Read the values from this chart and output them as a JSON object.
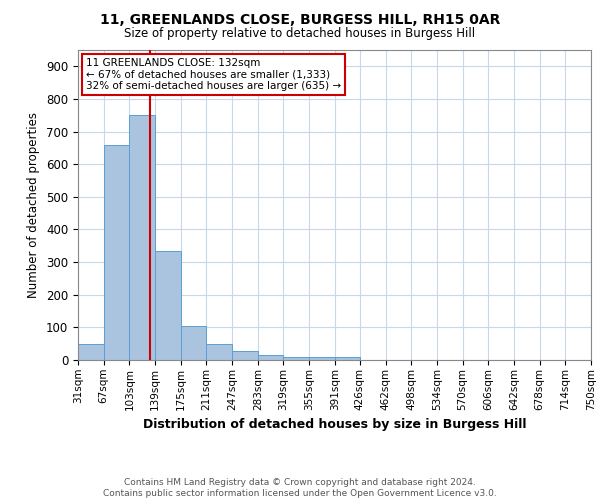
{
  "title1": "11, GREENLANDS CLOSE, BURGESS HILL, RH15 0AR",
  "title2": "Size of property relative to detached houses in Burgess Hill",
  "xlabel": "Distribution of detached houses by size in Burgess Hill",
  "ylabel": "Number of detached properties",
  "bin_labels": [
    "31sqm",
    "67sqm",
    "103sqm",
    "139sqm",
    "175sqm",
    "211sqm",
    "247sqm",
    "283sqm",
    "319sqm",
    "355sqm",
    "391sqm",
    "426sqm",
    "462sqm",
    "498sqm",
    "534sqm",
    "570sqm",
    "606sqm",
    "642sqm",
    "678sqm",
    "714sqm",
    "750sqm"
  ],
  "bar_heights": [
    50,
    660,
    750,
    335,
    105,
    50,
    27,
    15,
    10,
    8,
    8,
    0,
    0,
    0,
    0,
    0,
    0,
    0,
    0,
    0
  ],
  "bar_color": "#aac4e0",
  "bar_edge_color": "#5a9fd4",
  "red_line_x": 132,
  "bin_edges_numeric": [
    31,
    67,
    103,
    139,
    175,
    211,
    247,
    283,
    319,
    355,
    391,
    426,
    462,
    498,
    534,
    570,
    606,
    642,
    678,
    714,
    750
  ],
  "annotation_title": "11 GREENLANDS CLOSE: 132sqm",
  "annotation_line1": "← 67% of detached houses are smaller (1,333)",
  "annotation_line2": "32% of semi-detached houses are larger (635) →",
  "annotation_box_color": "#ffffff",
  "annotation_box_edge": "#cc0000",
  "ylim": [
    0,
    950
  ],
  "yticks": [
    0,
    100,
    200,
    300,
    400,
    500,
    600,
    700,
    800,
    900
  ],
  "footer1": "Contains HM Land Registry data © Crown copyright and database right 2024.",
  "footer2": "Contains public sector information licensed under the Open Government Licence v3.0.",
  "background_color": "#ffffff",
  "grid_color": "#c8d8e8"
}
